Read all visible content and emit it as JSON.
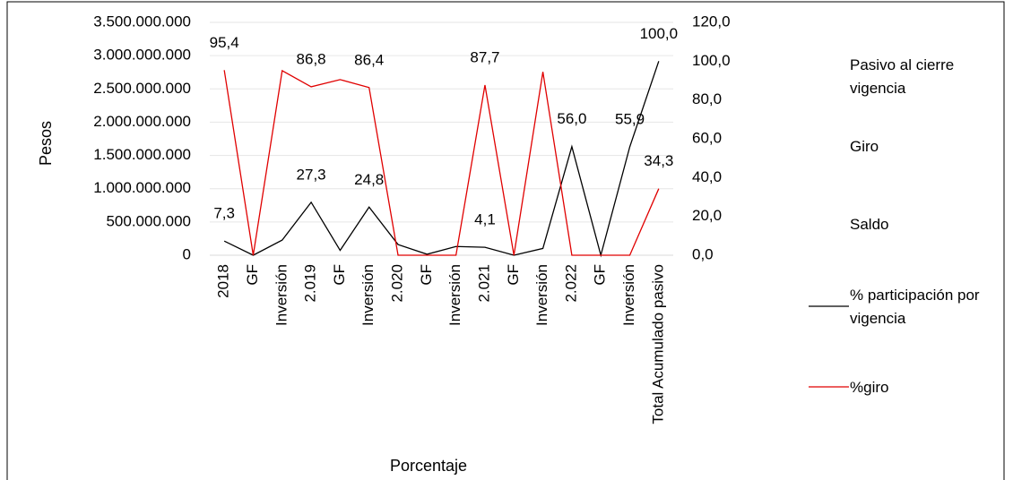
{
  "chart_data": {
    "type": "line",
    "x_label": "Porcentaje",
    "y_label": "Pesos",
    "categories": [
      "2018",
      "GF",
      "Inversión",
      "2.019",
      "GF",
      "Inversión",
      "2.020",
      "GF",
      "Inversión",
      "2.021",
      "GF",
      "Inversión",
      "2.022",
      "GF",
      "Inversión",
      "Total Acumulado pasivo"
    ],
    "ylim": [
      0,
      3500000000
    ],
    "yticks": [
      0,
      {
        "value": 500000000,
        "label": "500.000.000"
      },
      {
        "value": 1000000000,
        "label": "1.000.000.000"
      },
      {
        "value": 1500000000,
        "label": "1.500.000.000"
      },
      {
        "value": 2000000000,
        "label": "2.000.000.000"
      },
      {
        "value": 2500000000,
        "label": "2.500.000.000"
      },
      {
        "value": 3000000000,
        "label": "3.000.000.000"
      },
      {
        "value": 3500000000,
        "label": "3.500.000.000"
      }
    ],
    "y2lim": [
      0,
      120
    ],
    "y2ticks": [
      {
        "value": 0,
        "label": "0,0"
      },
      {
        "value": 20,
        "label": "20,0"
      },
      {
        "value": 40,
        "label": "40,0"
      },
      {
        "value": 60,
        "label": "60,0"
      },
      {
        "value": 80,
        "label": "80,0"
      },
      {
        "value": 100,
        "label": "100,0"
      },
      {
        "value": 120,
        "label": "120,0"
      }
    ],
    "grid": true,
    "legend": "right",
    "series": [
      {
        "name": "Pasivo al cierre vigencia"
      },
      {
        "name": "Giro"
      },
      {
        "name": "Saldo"
      },
      {
        "name": "% participación por vigencia",
        "color": "#000000",
        "axis": "y2",
        "values": [
          7.3,
          0,
          7.8,
          27.3,
          2.5,
          24.8,
          5.5,
          0.5,
          4.5,
          4.1,
          0,
          3.5,
          56.0,
          0,
          55.9,
          100.0
        ],
        "value_labels": [
          "7,3",
          null,
          null,
          "27,3",
          null,
          "24,8",
          null,
          null,
          null,
          "4,1",
          null,
          null,
          "56,0",
          null,
          "55,9",
          "100,0"
        ]
      },
      {
        "name": "%giro",
        "color": "#e00000",
        "axis": "y2",
        "values": [
          95.4,
          0,
          95.1,
          86.8,
          90.5,
          86.4,
          0,
          0,
          0,
          87.7,
          0,
          94.5,
          0,
          0,
          0,
          34.3
        ],
        "value_labels": [
          "95,4",
          null,
          null,
          "86,8",
          null,
          "86,4",
          null,
          null,
          null,
          "87,7",
          null,
          null,
          null,
          null,
          null,
          "34,3"
        ]
      }
    ]
  }
}
